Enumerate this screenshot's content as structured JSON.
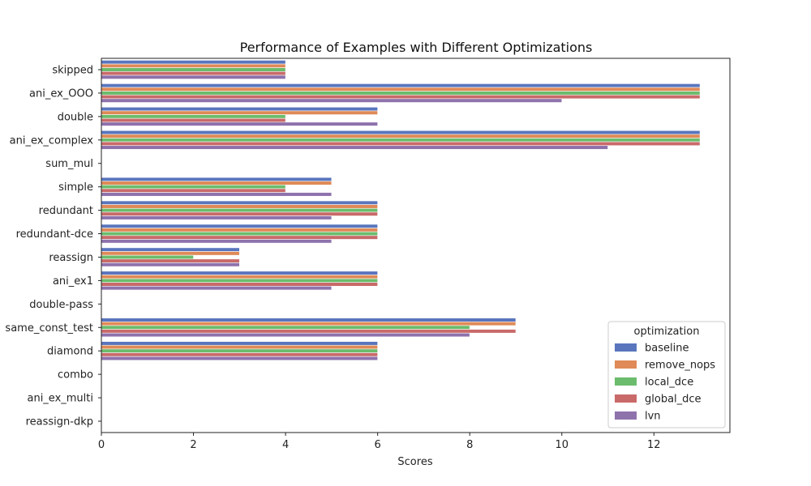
{
  "chart_data": {
    "type": "bar",
    "orientation": "horizontal",
    "title": "Performance of Examples with Different Optimizations",
    "xlabel": "Scores",
    "ylabel": "",
    "xlim": [
      0,
      13.65
    ],
    "xticks": [
      0,
      2,
      4,
      6,
      8,
      10,
      12
    ],
    "grid": false,
    "legend": {
      "title": "optimization",
      "position": "lower-right"
    },
    "categories": [
      "skipped",
      "ani_ex_OOO",
      "double",
      "ani_ex_complex",
      "sum_mul",
      "simple",
      "redundant",
      "redundant-dce",
      "reassign",
      "ani_ex1",
      "double-pass",
      "same_const_test",
      "diamond",
      "combo",
      "ani_ex_multi",
      "reassign-dkp"
    ],
    "series": [
      {
        "name": "baseline",
        "color": "#5975bd",
        "values": [
          4,
          13,
          6,
          13,
          0,
          5,
          6,
          6,
          3,
          6,
          0,
          9,
          6,
          0,
          0,
          0
        ]
      },
      {
        "name": "remove_nops",
        "color": "#df8a57",
        "values": [
          4,
          13,
          6,
          13,
          0,
          5,
          6,
          6,
          3,
          6,
          0,
          9,
          6,
          0,
          0,
          0
        ]
      },
      {
        "name": "local_dce",
        "color": "#6bbc6c",
        "values": [
          4,
          13,
          4,
          13,
          0,
          4,
          6,
          6,
          2,
          6,
          0,
          8,
          6,
          0,
          0,
          0
        ]
      },
      {
        "name": "global_dce",
        "color": "#c96a69",
        "values": [
          4,
          13,
          4,
          13,
          0,
          4,
          6,
          6,
          3,
          6,
          0,
          9,
          6,
          0,
          0,
          0
        ]
      },
      {
        "name": "lvn",
        "color": "#8e72ac",
        "values": [
          4,
          10,
          6,
          11,
          0,
          5,
          5,
          5,
          3,
          5,
          0,
          8,
          6,
          0,
          0,
          0
        ]
      }
    ]
  }
}
